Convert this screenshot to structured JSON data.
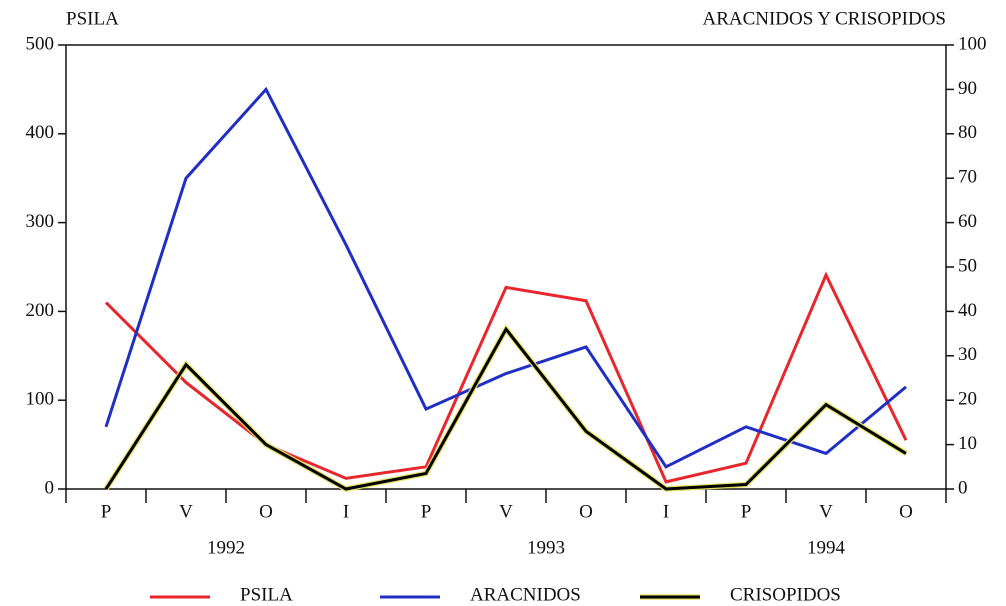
{
  "chart_data": {
    "type": "line",
    "ylabel": "PSILA",
    "y2label": "ARACNIDOS Y CRISOPIDOS",
    "categories": [
      "P",
      "V",
      "O",
      "I",
      "P",
      "V",
      "O",
      "I",
      "P",
      "V",
      "O"
    ],
    "year_labels": [
      "1992",
      "1993",
      "1994"
    ],
    "series": [
      {
        "name": "PSILA",
        "color": "#e8262b",
        "values": [
          210,
          120,
          50,
          12,
          25,
          227,
          212,
          8,
          29,
          241,
          55
        ]
      },
      {
        "name": "ARACNIDOS",
        "color": "#1f2fc4",
        "axis": "y2",
        "values": [
          14,
          70,
          90,
          55,
          18,
          26,
          32,
          5,
          14,
          8,
          23
        ]
      },
      {
        "name": "CRISOPIDOS",
        "color": "#000000",
        "axis": "y2",
        "values": [
          0,
          28,
          10,
          0,
          3.5,
          36,
          13,
          0,
          1,
          19,
          8
        ]
      }
    ],
    "ylim": [
      0,
      500
    ],
    "yticks": [
      0,
      100,
      200,
      300,
      400,
      500
    ],
    "y2lim": [
      0,
      100
    ],
    "y2ticks": [
      0,
      10,
      20,
      30,
      40,
      50,
      60,
      70,
      80,
      90,
      100
    ],
    "grid": false
  }
}
